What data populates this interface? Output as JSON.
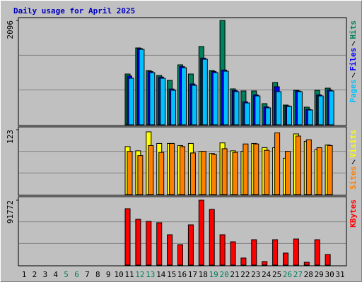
{
  "title": "Daily usage for April 2025",
  "chart_data": [
    {
      "type": "bar",
      "ylim": [
        0,
        2096
      ],
      "yticks": [
        2096
      ],
      "series": [
        {
          "name": "Hits",
          "color": "#00805c",
          "values": [
            null,
            null,
            null,
            null,
            null,
            null,
            null,
            null,
            null,
            null,
            1020,
            1544,
            1090,
            991,
            892,
            1204,
            1020,
            1572,
            1090,
            2096,
            722,
            680,
            680,
            425,
            850,
            397,
            694,
            354,
            694,
            736,
            null
          ]
        },
        {
          "name": "Files",
          "color": "#0000ff",
          "values": [
            null,
            null,
            null,
            null,
            null,
            null,
            null,
            null,
            null,
            null,
            980,
            1530,
            1070,
            960,
            720,
            1170,
            820,
            1340,
            1070,
            1100,
            690,
            460,
            600,
            360,
            765,
            380,
            680,
            310,
            600,
            700,
            null
          ]
        },
        {
          "name": "Pages",
          "color": "#00c0ff",
          "values": [
            null,
            null,
            null,
            null,
            null,
            null,
            null,
            null,
            null,
            null,
            935,
            1515,
            1048,
            935,
            694,
            1147,
            793,
            1317,
            1048,
            1076,
            666,
            439,
            580,
            340,
            666,
            368,
            666,
            297,
            580,
            680,
            null
          ]
        }
      ]
    },
    {
      "type": "bar",
      "ylim": [
        0,
        123
      ],
      "yticks": [
        123
      ],
      "series": [
        {
          "name": "Visits",
          "color": "#ffff00",
          "values": [
            null,
            null,
            null,
            null,
            null,
            null,
            null,
            null,
            null,
            null,
            91,
            83,
            119,
            97,
            97,
            93,
            97,
            82,
            78,
            98,
            83,
            82,
            97,
            89,
            89,
            69,
            115,
            101,
            85,
            94,
            null
          ]
        },
        {
          "name": "Sites",
          "color": "#ff8000",
          "values": [
            null,
            null,
            null,
            null,
            null,
            null,
            null,
            null,
            null,
            null,
            82,
            74,
            93,
            80,
            97,
            91,
            79,
            82,
            76,
            87,
            80,
            96,
            96,
            84,
            117,
            82,
            111,
            104,
            89,
            93,
            null
          ]
        }
      ]
    },
    {
      "type": "bar",
      "ylim": [
        0,
        91772
      ],
      "yticks": [
        91772
      ],
      "categories": [
        "1",
        "2",
        "3",
        "4",
        "5",
        "6",
        "7",
        "8",
        "9",
        "10",
        "11",
        "12",
        "13",
        "14",
        "15",
        "16",
        "17",
        "18",
        "19",
        "20",
        "21",
        "22",
        "23",
        "24",
        "25",
        "26",
        "27",
        "28",
        "29",
        "30",
        "31"
      ],
      "category_colors": [
        "#000000",
        "#000000",
        "#000000",
        "#000000",
        "#00805c",
        "#00805c",
        "#000000",
        "#000000",
        "#000000",
        "#000000",
        "#000000",
        "#00805c",
        "#00805c",
        "#000000",
        "#000000",
        "#000000",
        "#000000",
        "#000000",
        "#00805c",
        "#00805c",
        "#000000",
        "#000000",
        "#000000",
        "#000000",
        "#000000",
        "#00805c",
        "#00805c",
        "#000000",
        "#000000",
        "#000000",
        "#000000"
      ],
      "series": [
        {
          "name": "KBytes",
          "color": "#ff0000",
          "values": [
            null,
            null,
            null,
            null,
            null,
            null,
            null,
            null,
            null,
            null,
            79800,
            64800,
            61800,
            59900,
            42900,
            28900,
            56900,
            91772,
            78800,
            42900,
            32900,
            10000,
            35900,
            5000,
            35900,
            17000,
            36900,
            4000,
            35900,
            15000,
            null
          ]
        }
      ]
    }
  ]
}
